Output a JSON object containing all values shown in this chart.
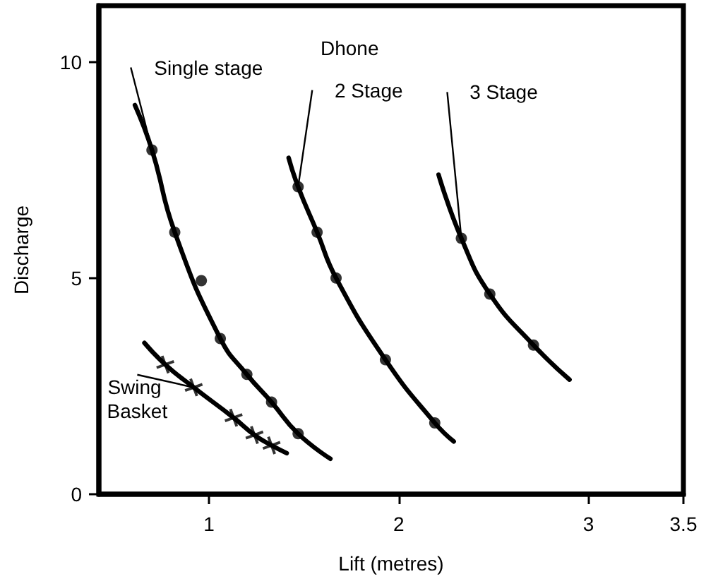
{
  "chart_data": {
    "type": "line",
    "title": "Dhone",
    "xlabel": "Lift (metres)",
    "ylabel": "Discharge",
    "xlim": [
      0.42,
      3.5
    ],
    "xticks": [
      1,
      2,
      3,
      3.5
    ],
    "ylim": [
      0,
      11.3
    ],
    "yticks": [
      0,
      5,
      10
    ],
    "grid": false,
    "legend": false,
    "color": "#000000",
    "series": [
      {
        "name": "Single stage",
        "marker": "none",
        "x": [
          0.61,
          0.7,
          0.82,
          1.06,
          1.2,
          1.33,
          1.47,
          1.64
        ],
        "values": [
          9.0,
          7.96,
          6.06,
          3.6,
          2.77,
          2.13,
          1.4,
          0.82
        ]
      },
      {
        "type": "scatter",
        "marker": "circle",
        "x": [
          0.7,
          0.82,
          0.96,
          1.06,
          1.2,
          1.33,
          1.47
        ],
        "values": [
          7.96,
          6.06,
          4.94,
          3.6,
          2.77,
          2.13,
          1.4
        ]
      },
      {
        "name": "2 Stage",
        "marker": "none",
        "x": [
          1.42,
          1.47,
          1.57,
          1.67,
          1.93,
          2.19,
          2.29
        ],
        "values": [
          7.78,
          7.11,
          6.06,
          5.0,
          3.11,
          1.65,
          1.22
        ]
      },
      {
        "type": "scatter",
        "marker": "circle",
        "x": [
          1.47,
          1.57,
          1.67,
          1.93,
          2.19
        ],
        "values": [
          7.11,
          6.06,
          5.0,
          3.11,
          1.65
        ]
      },
      {
        "name": "3 Stage",
        "marker": "none",
        "x": [
          2.21,
          2.33,
          2.48,
          2.71,
          2.9
        ],
        "values": [
          7.39,
          5.92,
          4.63,
          3.45,
          2.65
        ]
      },
      {
        "type": "scatter",
        "marker": "circle",
        "x": [
          2.33,
          2.48,
          2.71
        ],
        "values": [
          5.92,
          4.63,
          3.45
        ]
      },
      {
        "name": "Swing Basket",
        "marker": "none",
        "x": [
          0.66,
          0.77,
          0.92,
          1.13,
          1.24,
          1.33,
          1.41
        ],
        "values": [
          3.5,
          3.0,
          2.47,
          1.77,
          1.37,
          1.13,
          0.95
        ]
      },
      {
        "type": "scatter",
        "marker": "cross",
        "x": [
          0.77,
          0.92,
          1.13,
          1.24,
          1.33
        ],
        "values": [
          3.0,
          2.47,
          1.77,
          1.37,
          1.13
        ]
      }
    ]
  }
}
